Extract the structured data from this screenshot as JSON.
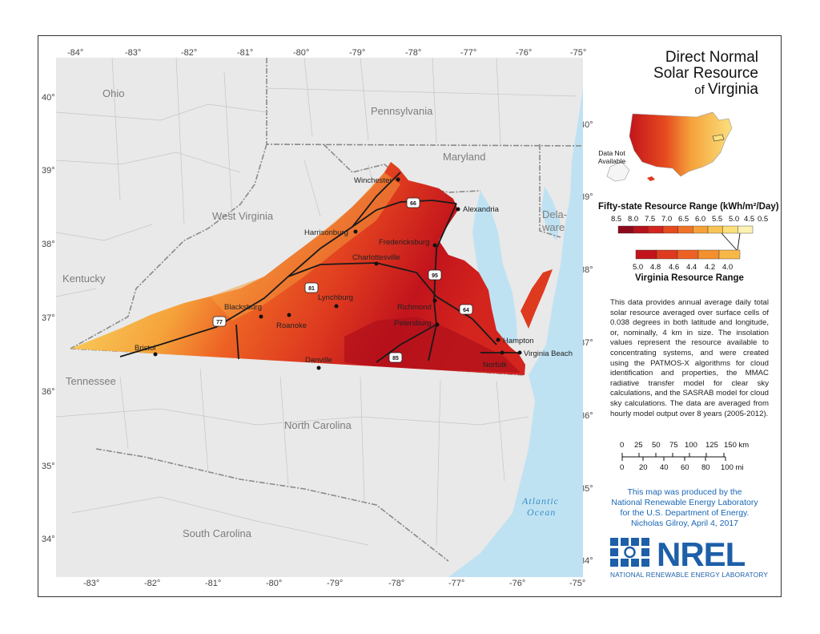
{
  "title": {
    "line1": "Direct Normal",
    "line2": "Solar Resource",
    "line3_small": "of ",
    "line3": "Virginia"
  },
  "inset": {
    "data_not_available": "Data Not Available"
  },
  "legend_fifty": {
    "heading": "Fifty-state Resource Range (kWh/m²/Day)",
    "labels": [
      "8.5",
      "8.0",
      "7.5",
      "7.0",
      "6.5",
      "6.0",
      "5.5",
      "5.0",
      "4.5",
      "0.5"
    ],
    "colors": [
      "#8c0a1c",
      "#b5121b",
      "#d4241e",
      "#e64a1f",
      "#f07427",
      "#f5a23a",
      "#f8c455",
      "#fbe07d",
      "#fdf2b3"
    ]
  },
  "legend_virginia": {
    "heading": "Virginia Resource Range",
    "labels": [
      "5.0",
      "4.8",
      "4.6",
      "4.4",
      "4.2",
      "4.0"
    ],
    "colors": [
      "#c2141c",
      "#de3a1f",
      "#ed6224",
      "#f4902f",
      "#f8b848"
    ]
  },
  "description": "This data provides annual average daily total solar resource averaged over surface cells of 0.038 degrees in both latitude and longitude, or, nominally, 4 km in size. The insolation values represent the resource available to concentrating systems, and were created using the PATMOS-X algorithms for cloud identification and properties, the MMAC radiative transfer model for clear sky calculations, and the SASRAB model for cloud sky calculations. The data are averaged from hourly model output over 8 years (2005-2012).",
  "scale": {
    "km_labels": [
      "0",
      "25",
      "50",
      "75",
      "100",
      "125",
      "150 km"
    ],
    "mi_labels": [
      "0",
      "20",
      "40",
      "60",
      "80",
      "100 mi"
    ]
  },
  "credit": {
    "line1": "This map was produced by the",
    "line2": "National Renewable Energy Laboratory",
    "line3": "for the U.S. Department of Energy.",
    "line4": "Nicholas Gilroy,   April 4, 2017"
  },
  "logo": {
    "word": "NREL",
    "full_name": "NATIONAL RENEWABLE ENERGY LABORATORY"
  },
  "ticks": {
    "top": [
      "-84°",
      "-83°",
      "-82°",
      "-81°",
      "-80°",
      "-79°",
      "-78°",
      "-77°",
      "-76°",
      "-75°"
    ],
    "bottom": [
      "-83°",
      "-82°",
      "-81°",
      "-80°",
      "-79°",
      "-78°",
      "-77°",
      "-76°",
      "-75°"
    ],
    "left": [
      "40°",
      "39°",
      "38°",
      "37°",
      "36°",
      "35°",
      "34°"
    ],
    "right": [
      "40°",
      "39°",
      "38°",
      "37°",
      "36°",
      "35°",
      "34°"
    ]
  },
  "states": {
    "ohio": "Ohio",
    "pennsylvania": "Pennsylvania",
    "maryland": "Maryland",
    "west_virginia": "West Virginia",
    "kentucky": "Kentucky",
    "tennessee": "Tennessee",
    "north_carolina": "North Carolina",
    "south_carolina": "South Carolina",
    "delaware1": "Dela-",
    "delaware2": "ware"
  },
  "ocean": {
    "line1": "Atlantic",
    "line2": "Ocean"
  },
  "cities": {
    "winchester": "Winchester",
    "alexandria": "Alexandria",
    "harrisonburg": "Harrisonburg",
    "fredericksburg": "Fredericksburg",
    "charlottesville": "Charlottesville",
    "blacksburg": "Blacksburg",
    "lynchburg": "Lynchburg",
    "roanoke": "Roanoke",
    "richmond": "Richmond",
    "petersburg": "Petersburg",
    "hampton": "Hampton",
    "virginia_beach": "Virginia Beach",
    "norfolk": "Norfolk",
    "bristol": "Bristol",
    "danville": "Danville"
  },
  "highways": {
    "i66": "66",
    "i81": "81",
    "i95": "95",
    "i64": "64",
    "i77": "77",
    "i85": "85"
  }
}
